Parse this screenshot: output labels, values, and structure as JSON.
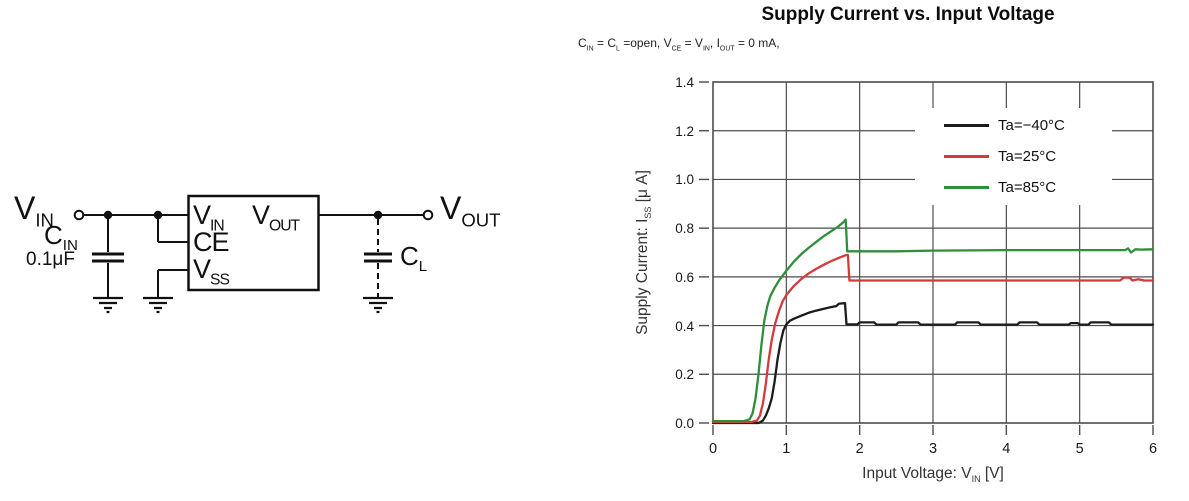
{
  "circuit": {
    "vin_terminal": [
      {
        "t": "V"
      },
      {
        "t": "IN",
        "sub": true
      }
    ],
    "cin_label": [
      {
        "t": "C"
      },
      {
        "t": "IN",
        "sub": true
      }
    ],
    "cin_value": "0.1μF",
    "chip": {
      "pin_vin": [
        {
          "t": "V"
        },
        {
          "t": "IN",
          "sub": true
        }
      ],
      "pin_vout": [
        {
          "t": "V"
        },
        {
          "t": "OUT",
          "sub": true
        }
      ],
      "pin_ce": [
        {
          "t": "CE"
        }
      ],
      "pin_vss": [
        {
          "t": "V"
        },
        {
          "t": "SS",
          "sub": true
        }
      ]
    },
    "cl_label": [
      {
        "t": "C"
      },
      {
        "t": "L",
        "sub": true
      }
    ],
    "vout_terminal": [
      {
        "t": "V"
      },
      {
        "t": "OUT",
        "sub": true
      }
    ]
  },
  "chart_data": {
    "type": "line",
    "title": "Supply Current vs. Input Voltage",
    "condition_segments": [
      {
        "t": "C"
      },
      {
        "t": "IN",
        "sub": true
      },
      {
        "t": " = C"
      },
      {
        "t": "L",
        "sub": true
      },
      {
        "t": " =open, V"
      },
      {
        "t": "CE",
        "sub": true
      },
      {
        "t": " = V"
      },
      {
        "t": "IN",
        "sub": true
      },
      {
        "t": ", I"
      },
      {
        "t": "OUT",
        "sub": true
      },
      {
        "t": " = 0 mA,"
      }
    ],
    "xlabel_segments": [
      {
        "t": "Input Voltage: V"
      },
      {
        "t": "IN",
        "sub": true
      },
      {
        "t": " [V]"
      }
    ],
    "ylabel_segments": [
      {
        "t": "Supply Current: I"
      },
      {
        "t": "SS",
        "sub": true
      },
      {
        "t": " [μ A]"
      }
    ],
    "xlim": [
      0,
      6
    ],
    "ylim": [
      0,
      1.4
    ],
    "xticks": [
      [
        0,
        "0"
      ],
      [
        1,
        "1"
      ],
      [
        2,
        "2"
      ],
      [
        3,
        "3"
      ],
      [
        4,
        "4"
      ],
      [
        5,
        "5"
      ],
      [
        6,
        "6"
      ]
    ],
    "yticks": [
      [
        0,
        "0.0"
      ],
      [
        0.2,
        "0.2"
      ],
      [
        0.4,
        "0.4"
      ],
      [
        0.6,
        "0.6"
      ],
      [
        0.8,
        "0.8"
      ],
      [
        1.0,
        "1.0"
      ],
      [
        1.2,
        "1.2"
      ],
      [
        1.4,
        "1.4"
      ]
    ],
    "grid": true,
    "legend_position": "top-right-inside",
    "axis_color": "#4d4d4d",
    "series": [
      {
        "name": "Ta=−40°C",
        "color": "#1c1c1c",
        "points": [
          [
            0,
            0.0
          ],
          [
            0.62,
            0.0
          ],
          [
            0.68,
            0.01
          ],
          [
            0.72,
            0.03
          ],
          [
            0.76,
            0.06
          ],
          [
            0.8,
            0.1
          ],
          [
            0.84,
            0.17
          ],
          [
            0.88,
            0.26
          ],
          [
            0.92,
            0.33
          ],
          [
            0.96,
            0.38
          ],
          [
            1.0,
            0.405
          ],
          [
            1.05,
            0.42
          ],
          [
            1.1,
            0.428
          ],
          [
            1.2,
            0.44
          ],
          [
            1.3,
            0.452
          ],
          [
            1.4,
            0.461
          ],
          [
            1.5,
            0.468
          ],
          [
            1.6,
            0.475
          ],
          [
            1.68,
            0.48
          ],
          [
            1.72,
            0.49
          ],
          [
            1.8,
            0.492
          ],
          [
            1.82,
            0.405
          ],
          [
            1.97,
            0.405
          ],
          [
            2.0,
            0.413
          ],
          [
            2.2,
            0.413
          ],
          [
            2.23,
            0.404
          ],
          [
            2.5,
            0.404
          ],
          [
            2.53,
            0.413
          ],
          [
            2.8,
            0.413
          ],
          [
            2.83,
            0.404
          ],
          [
            3.3,
            0.404
          ],
          [
            3.33,
            0.413
          ],
          [
            3.62,
            0.413
          ],
          [
            3.65,
            0.404
          ],
          [
            4.15,
            0.404
          ],
          [
            4.18,
            0.413
          ],
          [
            4.42,
            0.413
          ],
          [
            4.45,
            0.404
          ],
          [
            4.85,
            0.404
          ],
          [
            4.88,
            0.41
          ],
          [
            4.97,
            0.41
          ],
          [
            5.0,
            0.404
          ],
          [
            5.12,
            0.404
          ],
          [
            5.15,
            0.413
          ],
          [
            5.4,
            0.413
          ],
          [
            5.43,
            0.404
          ],
          [
            6,
            0.404
          ]
        ]
      },
      {
        "name": "Ta=25°C",
        "color": "#d23b3b",
        "points": [
          [
            0,
            0.004
          ],
          [
            0.52,
            0.004
          ],
          [
            0.6,
            0.01
          ],
          [
            0.64,
            0.03
          ],
          [
            0.68,
            0.08
          ],
          [
            0.72,
            0.16
          ],
          [
            0.76,
            0.26
          ],
          [
            0.8,
            0.34
          ],
          [
            0.85,
            0.41
          ],
          [
            0.9,
            0.46
          ],
          [
            0.95,
            0.5
          ],
          [
            1.0,
            0.525
          ],
          [
            1.1,
            0.562
          ],
          [
            1.2,
            0.59
          ],
          [
            1.3,
            0.613
          ],
          [
            1.4,
            0.632
          ],
          [
            1.5,
            0.648
          ],
          [
            1.6,
            0.663
          ],
          [
            1.7,
            0.676
          ],
          [
            1.8,
            0.688
          ],
          [
            1.84,
            0.69
          ],
          [
            1.86,
            0.585
          ],
          [
            2.5,
            0.585
          ],
          [
            3.5,
            0.585
          ],
          [
            4.5,
            0.585
          ],
          [
            5.55,
            0.585
          ],
          [
            5.6,
            0.597
          ],
          [
            5.68,
            0.597
          ],
          [
            5.72,
            0.585
          ],
          [
            5.8,
            0.59
          ],
          [
            5.88,
            0.585
          ],
          [
            6,
            0.585
          ]
        ]
      },
      {
        "name": "Ta=85°C",
        "color": "#2e8f3a",
        "points": [
          [
            0,
            0.008
          ],
          [
            0.42,
            0.008
          ],
          [
            0.5,
            0.015
          ],
          [
            0.54,
            0.04
          ],
          [
            0.58,
            0.1
          ],
          [
            0.62,
            0.2
          ],
          [
            0.66,
            0.32
          ],
          [
            0.7,
            0.42
          ],
          [
            0.74,
            0.48
          ],
          [
            0.78,
            0.52
          ],
          [
            0.84,
            0.555
          ],
          [
            0.9,
            0.585
          ],
          [
            1.0,
            0.625
          ],
          [
            1.1,
            0.662
          ],
          [
            1.2,
            0.692
          ],
          [
            1.3,
            0.718
          ],
          [
            1.4,
            0.742
          ],
          [
            1.5,
            0.765
          ],
          [
            1.6,
            0.785
          ],
          [
            1.7,
            0.805
          ],
          [
            1.78,
            0.825
          ],
          [
            1.81,
            0.835
          ],
          [
            1.83,
            0.705
          ],
          [
            2.5,
            0.705
          ],
          [
            3.0,
            0.708
          ],
          [
            4.0,
            0.71
          ],
          [
            5.0,
            0.71
          ],
          [
            5.62,
            0.71
          ],
          [
            5.66,
            0.717
          ],
          [
            5.7,
            0.7
          ],
          [
            5.76,
            0.713
          ],
          [
            5.85,
            0.712
          ],
          [
            6,
            0.713
          ]
        ]
      }
    ]
  }
}
